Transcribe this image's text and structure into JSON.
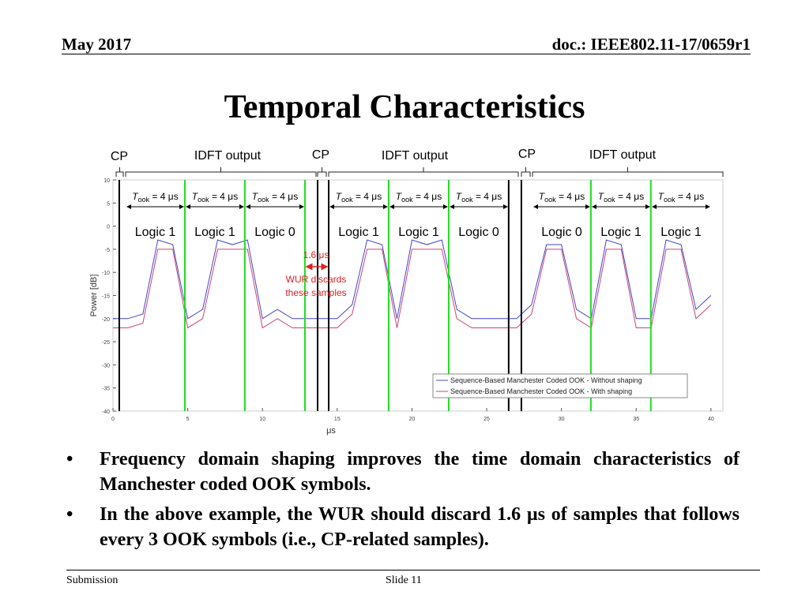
{
  "header": {
    "date": "May 2017",
    "doc": "doc.: IEEE802.11-17/0659r1"
  },
  "title": "Temporal Characteristics",
  "top_labels": [
    "CP",
    "IDFT output",
    "CP",
    "IDFT output",
    "CP",
    "IDFT output"
  ],
  "took_labels": [
    {
      "t": "T",
      "sub": "ook",
      "rest": " = 4 μs"
    },
    {
      "t": "T",
      "sub": "ook",
      "rest": " = 4 μs"
    },
    {
      "t": "T",
      "sub": "ook",
      "rest": " = 4 μs"
    },
    {
      "t": "T",
      "sub": "ook",
      "rest": " = 4 μs"
    },
    {
      "t": "T",
      "sub": "ook",
      "rest": " = 4 μs"
    },
    {
      "t": "T",
      "sub": "ook",
      "rest": " = 4 μs"
    },
    {
      "t": "T",
      "sub": "ook",
      "rest": " = 4 μs"
    },
    {
      "t": "T",
      "sub": "ook",
      "rest": " = 4 μs"
    },
    {
      "t": "T",
      "sub": "ook",
      "rest": " = 4 μs"
    }
  ],
  "logic_labels": [
    "Logic 1",
    "Logic 1",
    "Logic 0",
    "Logic 1",
    "Logic 1",
    "Logic 0",
    "Logic 0",
    "Logic 1",
    "Logic 1"
  ],
  "annotation": {
    "duration": "1.6 μs",
    "line1": "WUR discards",
    "line2": "these samples"
  },
  "chart_data": {
    "type": "line",
    "ylabel": "Power [dB]",
    "xlabel": "μs",
    "xlim": [
      0,
      40.8
    ],
    "ylim": [
      -40,
      10
    ],
    "xticks": [
      0,
      5,
      10,
      15,
      20,
      25,
      30,
      35,
      40
    ],
    "yticks": [
      10,
      5,
      0,
      -5,
      -10,
      -15,
      -20,
      -25,
      -30,
      -35,
      -40
    ],
    "vlines": [
      {
        "x": 0.42,
        "color": "#000000"
      },
      {
        "x": 4.81,
        "color": "#22dd22"
      },
      {
        "x": 8.82,
        "color": "#22dd22"
      },
      {
        "x": 12.84,
        "color": "#22dd22"
      },
      {
        "x": 13.69,
        "color": "#000000"
      },
      {
        "x": 14.43,
        "color": "#000000"
      },
      {
        "x": 18.44,
        "color": "#22dd22"
      },
      {
        "x": 22.46,
        "color": "#22dd22"
      },
      {
        "x": 26.47,
        "color": "#000000"
      },
      {
        "x": 27.32,
        "color": "#000000"
      },
      {
        "x": 31.97,
        "color": "#22dd22"
      },
      {
        "x": 35.98,
        "color": "#22dd22"
      }
    ],
    "x": [
      0,
      1,
      2,
      3,
      4,
      5,
      6,
      7,
      8,
      9,
      10,
      11,
      12,
      13,
      14,
      15,
      16,
      17,
      18,
      19,
      20,
      21,
      22,
      23,
      24,
      25,
      26,
      27,
      28,
      29,
      30,
      31,
      32,
      33,
      34,
      35,
      36,
      37,
      38,
      39,
      40
    ],
    "series": [
      {
        "name": "Sequence-Based Manchester Coded OOK - Without shaping",
        "color": "#4444cc",
        "values": [
          -20,
          -20,
          -19,
          -3,
          -4,
          -20,
          -18,
          -3,
          -4,
          -3,
          -20,
          -18,
          -20,
          -20,
          -20,
          -20,
          -17,
          -3,
          -4,
          -20,
          -3,
          -4,
          -3,
          -18,
          -20,
          -20,
          -20,
          -20,
          -17,
          -4,
          -4,
          -18,
          -20,
          -3,
          -4,
          -20,
          -20,
          -3,
          -4,
          -18,
          -15
        ]
      },
      {
        "name": "Sequence-Based Manchester Coded OOK - With shaping",
        "color": "#cc4477",
        "values": [
          -22,
          -22,
          -21,
          -5,
          -5,
          -22,
          -20,
          -5,
          -5,
          -5,
          -22,
          -20,
          -22,
          -22,
          -22,
          -22,
          -19,
          -5,
          -5,
          -22,
          -5,
          -5,
          -5,
          -20,
          -22,
          -22,
          -22,
          -22,
          -19,
          -5,
          -5,
          -20,
          -22,
          -5,
          -5,
          -22,
          -22,
          -5,
          -5,
          -20,
          -17
        ]
      }
    ]
  },
  "bullets": [
    "Frequency domain shaping improves the time domain characteristics of Manchester coded OOK symbols.",
    "In the above example, the WUR should discard 1.6 μs of samples that follows every 3 OOK symbols (i.e., CP-related samples)."
  ],
  "footer": {
    "left": "Submission",
    "center": "Slide 11"
  }
}
